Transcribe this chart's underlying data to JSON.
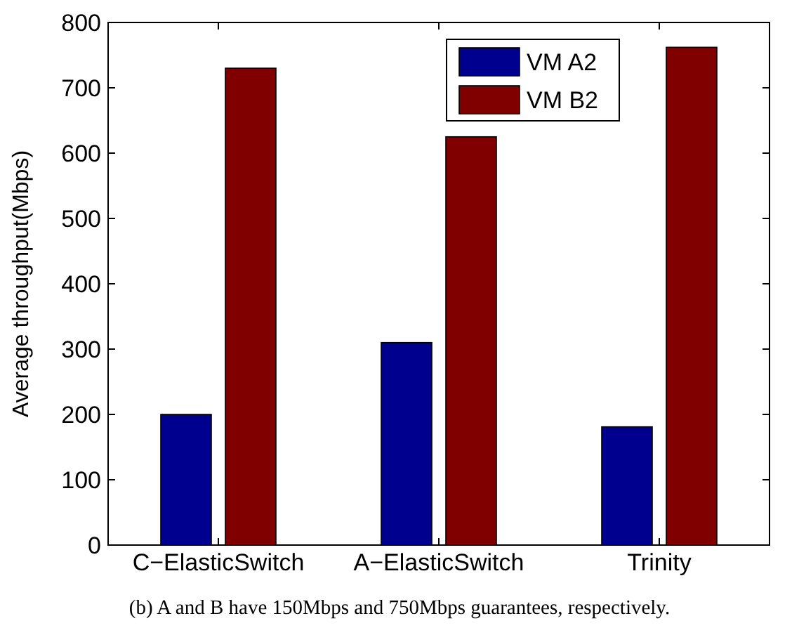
{
  "chart_data": {
    "type": "bar",
    "ylabel": "Average throughput(Mbps)",
    "categories": [
      "C−ElasticSwitch",
      "A−ElasticSwitch",
      "Trinity"
    ],
    "series": [
      {
        "name": "VM A2",
        "color": "#00008f",
        "values": [
          200,
          310,
          181
        ]
      },
      {
        "name": "VM B2",
        "color": "#800000",
        "values": [
          730,
          625,
          762
        ]
      }
    ],
    "ylim": [
      0,
      800
    ],
    "yticks": [
      0,
      100,
      200,
      300,
      400,
      500,
      600,
      700,
      800
    ],
    "legend": "top right",
    "grid": false,
    "annotations": [
      "(b) A and B have 150Mbps and 750Mbps guarantees, respectively."
    ]
  }
}
